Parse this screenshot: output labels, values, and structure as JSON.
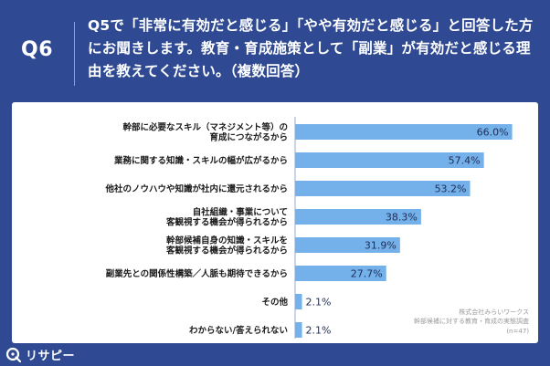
{
  "header": {
    "question_number": "Q6",
    "question_text": "Q5で「非常に有効だと感じる」「やや有効だと感じる」と回答した方にお聞きします。教育・育成施策として「副業」が有効だと感じる理由を教えてください。（複数回答）"
  },
  "chart_data": {
    "type": "bar",
    "orientation": "horizontal",
    "unit": "%",
    "xlim": [
      0,
      100
    ],
    "bar_color": "#74b0ea",
    "categories": [
      "幹部に必要なスキル（マネジメント等）の\n育成につながるから",
      "業務に関する知識・スキルの幅が広がるから",
      "他社のノウハウや知識が社内に還元されるから",
      "自社組織・事業について\n客観視する機会が得られるから",
      "幹部候補自身の知識・スキルを\n客観視する機会が得られるから",
      "副業先との関係性構築／人脈も期待できるから",
      "その他",
      "わからない/答えられない"
    ],
    "values": [
      66.0,
      57.4,
      53.2,
      38.3,
      31.9,
      27.7,
      2.1,
      2.1
    ],
    "value_labels": [
      "66.0%",
      "57.4%",
      "53.2%",
      "38.3%",
      "31.9%",
      "27.7%",
      "2.1%",
      "2.1%"
    ]
  },
  "source": {
    "company": "株式会社みらいワークス",
    "survey": "幹部候補に対する教育・育成の実態調査",
    "sample": "(n=47)"
  },
  "footer": {
    "logo_text": "リサピー"
  },
  "colors": {
    "background": "#2f4a93",
    "panel": "#ffffff",
    "bar": "#74b0ea",
    "axis": "#8fa8d6"
  }
}
